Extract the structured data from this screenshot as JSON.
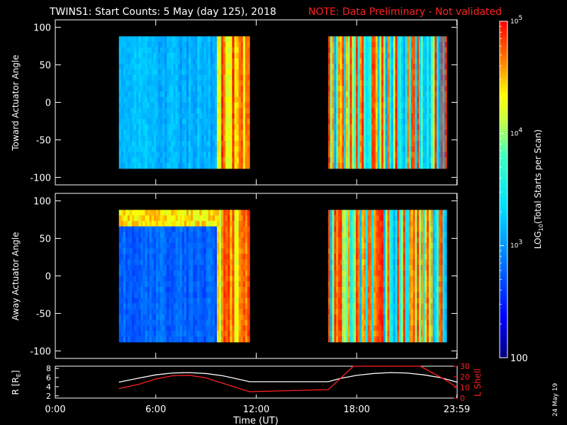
{
  "chart_data": {
    "type": "heatmap",
    "title": "TWINS1: Start Counts:  5 May (day 125), 2018",
    "note": "NOTE: Data Preliminary - Not validated",
    "xlabel": "Time (UT)",
    "x_ticks": [
      "0:00",
      "6:00",
      "12:00",
      "18:00",
      "23:59"
    ],
    "x_tick_hours": [
      0,
      6,
      12,
      18,
      23.98
    ],
    "xlim": [
      0,
      24
    ],
    "panels": [
      {
        "name": "toward",
        "ylabel": "Toward Actuator Angle",
        "ylim": [
          -110,
          110
        ],
        "y_ticks": [
          100,
          50,
          0,
          -50,
          -100
        ],
        "segments": [
          {
            "start_hour": 3.8,
            "end_hour": 11.6,
            "angle_range": [
              -88,
              88
            ],
            "level": "low, ~400-1000 starts, rising to ~1e5 after 10:00"
          },
          {
            "start_hour": 16.3,
            "end_hour": 24.0,
            "angle_range": [
              -88,
              88
            ],
            "level": "mixed ~1e3-1e5, striped"
          }
        ]
      },
      {
        "name": "away",
        "ylabel": "Away Actuator Angle",
        "ylim": [
          -110,
          110
        ],
        "y_ticks": [
          100,
          50,
          0,
          -50,
          -100
        ],
        "segments": [
          {
            "start_hour": 3.8,
            "end_hour": 11.6,
            "angle_range": [
              -88,
              88
            ],
            "level": "low ~300-800, band near +70 deg ~1e4-1e5"
          },
          {
            "start_hour": 16.3,
            "end_hour": 24.0,
            "angle_range": [
              -88,
              88
            ],
            "level": "mixed ~1e3-1e5, striped"
          }
        ]
      }
    ],
    "colorbar": {
      "label": "(Total Starts per Scan)",
      "label_prefix": "LOG",
      "label_sub": "10",
      "scale": "log",
      "range": [
        100,
        100000
      ],
      "tick_labels": [
        {
          "base": "10",
          "exp": "5",
          "value": 100000
        },
        {
          "base": "10",
          "exp": "4",
          "value": 10000
        },
        {
          "base": "10",
          "exp": "3",
          "value": 1000
        },
        {
          "base": "100",
          "exp": "",
          "value": 100
        }
      ]
    },
    "orbit_panel": {
      "left_label_main": "R [R",
      "left_label_sub": "E",
      "left_label_end": "]",
      "right_label": "L Shell",
      "left_ticks": [
        8,
        6,
        4,
        2
      ],
      "left_range": [
        1.5,
        8.5
      ],
      "right_ticks": [
        30,
        20,
        10,
        0
      ],
      "right_range": [
        0,
        30
      ],
      "series": [
        {
          "name": "R [RE]",
          "color": "#ffffff",
          "x": [
            3.8,
            5,
            6,
            7,
            8,
            9,
            10,
            11,
            11.6,
            16.3,
            17,
            18,
            19,
            20,
            21,
            22,
            23,
            24
          ],
          "y": [
            5.0,
            5.9,
            6.6,
            7.0,
            7.1,
            6.9,
            6.4,
            5.6,
            5.1,
            5.1,
            5.8,
            6.5,
            6.9,
            7.1,
            7.0,
            6.6,
            6.0,
            5.0
          ]
        },
        {
          "name": "L Shell",
          "color": "#ff2020",
          "x": [
            3.8,
            5,
            6,
            7,
            8,
            9,
            10,
            11,
            11.6,
            16.3,
            17,
            17.8,
            21.8,
            22.5,
            23.2,
            24
          ],
          "y": [
            9,
            13,
            18,
            21,
            21.5,
            19,
            14,
            9,
            6,
            8,
            18,
            31,
            31,
            24,
            18,
            10
          ]
        }
      ]
    }
  },
  "footer": {
    "date_stamp": "24 May 19"
  }
}
